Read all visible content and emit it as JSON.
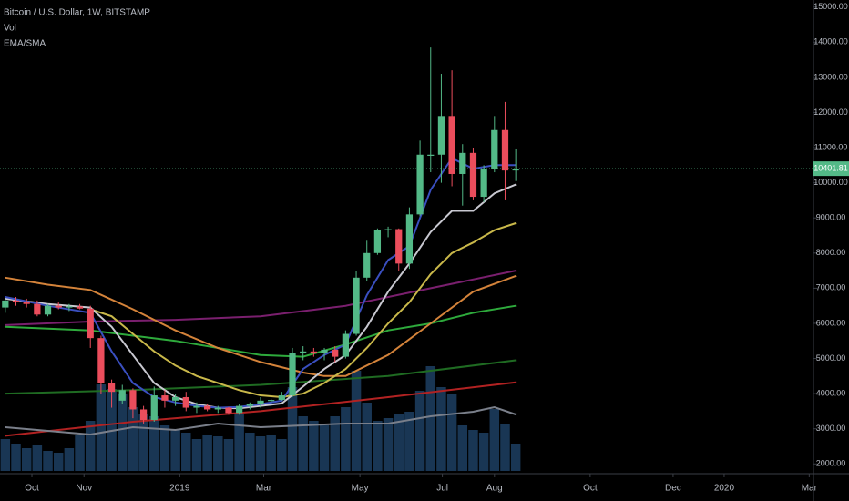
{
  "chart_data": {
    "type": "candlestick",
    "title": "Bitcoin / U.S. Dollar, 1W, BITSTAMP",
    "indicators": [
      "Vol",
      "EMA/SMA"
    ],
    "up_color": "#53b987",
    "down_color": "#eb4d5c",
    "volume_color": "#1d3f63",
    "grid": false,
    "ylim": [
      1800,
      15200
    ],
    "y2lim": [
      0,
      517
    ],
    "xlim": [
      -0.5,
      76
    ],
    "yticks": [
      {
        "value": 2000,
        "label": "2000.00"
      },
      {
        "value": 3000,
        "label": "3000.00"
      },
      {
        "value": 4000,
        "label": "4000.00"
      },
      {
        "value": 5000,
        "label": "5000.00"
      },
      {
        "value": 6000,
        "label": "6000.00"
      },
      {
        "value": 7000,
        "label": "7000.00"
      },
      {
        "value": 8000,
        "label": "8000.00"
      },
      {
        "value": 9000,
        "label": "9000.00"
      },
      {
        "value": 10000,
        "label": "10000.00"
      },
      {
        "value": 11000,
        "label": "11000.00"
      },
      {
        "value": 12000,
        "label": "12000.00"
      },
      {
        "value": 13000,
        "label": "13000.00"
      },
      {
        "value": 14000,
        "label": "14000.00"
      },
      {
        "value": 15000,
        "label": "15000.00"
      }
    ],
    "xticks": [
      {
        "value": 2.5,
        "label": "Oct"
      },
      {
        "value": 7.4,
        "label": "Nov"
      },
      {
        "value": 16.4,
        "label": "2019"
      },
      {
        "value": 24.3,
        "label": "Mar"
      },
      {
        "value": 33.35,
        "label": "May"
      },
      {
        "value": 41.1,
        "label": "Jul"
      },
      {
        "value": 46.0,
        "label": "Aug"
      },
      {
        "value": 55.0,
        "label": "Oct"
      },
      {
        "value": 62.8,
        "label": "Dec"
      },
      {
        "value": 67.6,
        "label": "2020"
      },
      {
        "value": 75.6,
        "label": "Mar"
      }
    ],
    "last_price": 10401.81,
    "candles": {
      "x": [
        0,
        1,
        2,
        3,
        4,
        5,
        6,
        7,
        8,
        9,
        10,
        11,
        12,
        13,
        14,
        15,
        16,
        17,
        18,
        19,
        20,
        21,
        22,
        23,
        24,
        25,
        26,
        27,
        28,
        29,
        30,
        31,
        32,
        33,
        34,
        35,
        36,
        37,
        38,
        39,
        40,
        41,
        42,
        43,
        44,
        45,
        46,
        47,
        48
      ],
      "open": [
        6450,
        6650,
        6600,
        6550,
        6250,
        6500,
        6450,
        6480,
        6420,
        5580,
        4300,
        3800,
        4100,
        3550,
        3250,
        3950,
        3800,
        3900,
        3600,
        3650,
        3550,
        3600,
        3450,
        3650,
        3700,
        3800,
        3820,
        3950,
        5150,
        5200,
        5150,
        5250,
        5050,
        5700,
        7300,
        8000,
        8650,
        8680,
        7700,
        9100,
        10800,
        10800,
        11900,
        10250,
        10850,
        9600,
        10400,
        11500,
        10350
      ],
      "high": [
        6700,
        6750,
        6700,
        6650,
        6550,
        6600,
        6550,
        6550,
        6500,
        5650,
        4400,
        4250,
        4150,
        3650,
        4200,
        4100,
        4000,
        4050,
        3750,
        3700,
        3650,
        3620,
        3700,
        3750,
        3900,
        3850,
        4050,
        5300,
        5350,
        5300,
        5300,
        5350,
        5800,
        7500,
        8350,
        8700,
        8750,
        8700,
        9300,
        11200,
        13850,
        13100,
        13200,
        11100,
        11000,
        10500,
        11900,
        12300,
        10950
      ],
      "low": [
        6300,
        6500,
        6450,
        6200,
        6200,
        6400,
        6350,
        6400,
        5300,
        4000,
        3600,
        3700,
        3300,
        3150,
        3200,
        3600,
        3650,
        3500,
        3450,
        3500,
        3450,
        3400,
        3400,
        3550,
        3600,
        3700,
        3800,
        3900,
        4950,
        5050,
        4950,
        4900,
        5000,
        5650,
        7200,
        7950,
        8450,
        7500,
        7550,
        9050,
        10300,
        10000,
        9900,
        9350,
        9500,
        9450,
        10300,
        9500,
        10050
      ],
      "close": [
        6650,
        6600,
        6550,
        6250,
        6500,
        6450,
        6480,
        6420,
        5580,
        4300,
        4050,
        4100,
        3550,
        3250,
        3950,
        3800,
        3900,
        3600,
        3650,
        3550,
        3600,
        3450,
        3650,
        3700,
        3800,
        3820,
        3950,
        5150,
        5200,
        5150,
        5250,
        5050,
        5700,
        7300,
        8000,
        8650,
        8680,
        7700,
        9100,
        10800,
        10800,
        11900,
        10250,
        10850,
        9600,
        10400,
        11500,
        10350,
        10401.81
      ],
      "volume": [
        35,
        30,
        25,
        28,
        22,
        20,
        25,
        40,
        55,
        95,
        90,
        85,
        70,
        62,
        60,
        50,
        45,
        42,
        35,
        40,
        38,
        35,
        62,
        42,
        38,
        40,
        35,
        92,
        60,
        55,
        50,
        60,
        70,
        110,
        75,
        55,
        58,
        62,
        65,
        88,
        115,
        92,
        85,
        50,
        45,
        42,
        68,
        52,
        30
      ]
    },
    "lines": [
      {
        "color": "#1f6b22",
        "x": [
          0,
          12,
          24,
          36,
          48
        ],
        "values": [
          4000,
          4100,
          4250,
          4500,
          4950
        ]
      },
      {
        "color": "#b22222",
        "x": [
          0,
          12,
          24,
          36,
          48
        ],
        "values": [
          2800,
          3200,
          3500,
          3900,
          4320
        ]
      },
      {
        "color": "#7a1f6e",
        "x": [
          0,
          8,
          16,
          24,
          32,
          40,
          48
        ],
        "values": [
          5950,
          6050,
          6100,
          6200,
          6500,
          7000,
          7500
        ]
      },
      {
        "color": "#2eaa3c",
        "x": [
          0,
          8,
          16,
          24,
          28,
          32,
          36,
          40,
          44,
          48
        ],
        "values": [
          5900,
          5800,
          5500,
          5100,
          5050,
          5400,
          5800,
          6000,
          6300,
          6500
        ]
      },
      {
        "color": "#d4833a",
        "x": [
          0,
          4,
          8,
          12,
          16,
          20,
          24,
          28,
          30,
          32,
          36,
          40,
          44,
          48
        ],
        "values": [
          7300,
          7100,
          6950,
          6400,
          5800,
          5300,
          4900,
          4600,
          4500,
          4500,
          5100,
          6000,
          6900,
          7350
        ]
      },
      {
        "color": "#c9b84a",
        "x": [
          8,
          10,
          12,
          14,
          16,
          18,
          20,
          22,
          24,
          26,
          28,
          30,
          32,
          34,
          36,
          38,
          40,
          42,
          44,
          46,
          48
        ],
        "values": [
          6400,
          6200,
          5700,
          5200,
          4800,
          4500,
          4300,
          4100,
          3950,
          3900,
          4000,
          4300,
          4700,
          5300,
          6000,
          6600,
          7400,
          8000,
          8300,
          8650,
          8850
        ]
      },
      {
        "color": "#c8c8d0",
        "x": [
          0,
          4,
          8,
          10,
          12,
          14,
          16,
          18,
          20,
          22,
          24,
          26,
          28,
          30,
          32,
          34,
          36,
          38,
          40,
          42,
          44,
          46,
          48
        ],
        "values": [
          6700,
          6550,
          6450,
          5900,
          5100,
          4300,
          3900,
          3700,
          3600,
          3580,
          3650,
          3720,
          4200,
          4700,
          5100,
          5900,
          6900,
          7700,
          8600,
          9200,
          9200,
          9700,
          9950
        ]
      },
      {
        "color": "#3a4fc0",
        "x": [
          0,
          4,
          8,
          10,
          12,
          14,
          16,
          18,
          20,
          22,
          24,
          26,
          28,
          30,
          32,
          34,
          36,
          38,
          40,
          42,
          44,
          46,
          48
        ],
        "values": [
          6750,
          6500,
          6300,
          5200,
          4300,
          3900,
          3750,
          3650,
          3600,
          3620,
          3700,
          3800,
          4700,
          5100,
          5400,
          6800,
          7800,
          8200,
          9800,
          10700,
          10400,
          10500,
          10500
        ]
      },
      {
        "color": "#7a7f8a",
        "axis": "y2",
        "x": [
          0,
          4,
          8,
          12,
          16,
          20,
          24,
          28,
          32,
          36,
          40,
          44,
          46,
          48
        ],
        "values": [
          48,
          44,
          40,
          48,
          45,
          52,
          48,
          50,
          52,
          52,
          60,
          65,
          70,
          62
        ]
      }
    ]
  }
}
